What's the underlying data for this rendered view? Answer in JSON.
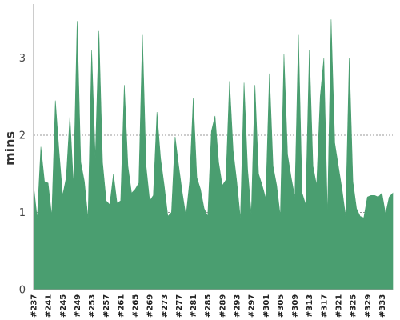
{
  "chart_data": {
    "type": "area",
    "ylabel": "mins",
    "xlabel": "",
    "ylim": [
      0,
      3.7
    ],
    "yticks": [
      0,
      1,
      2,
      3
    ],
    "grid": true,
    "fill_color": "#4a9e70",
    "grid_color": "#777777",
    "x_start": 237,
    "x_end": 335,
    "x_tick_labels": [
      "#237",
      "#241",
      "#245",
      "#249",
      "#253",
      "#257",
      "#261",
      "#265",
      "#269",
      "#273",
      "#277",
      "#281",
      "#285",
      "#289",
      "#293",
      "#297",
      "#301",
      "#305",
      "#309",
      "#313",
      "#317",
      "#321",
      "#325",
      "#329",
      "#333"
    ],
    "x_tick_values": [
      237,
      241,
      245,
      249,
      253,
      257,
      261,
      265,
      269,
      273,
      277,
      281,
      285,
      289,
      293,
      297,
      301,
      305,
      309,
      313,
      317,
      321,
      325,
      329,
      333
    ],
    "points": [
      [
        237,
        1.35
      ],
      [
        238,
        0.92
      ],
      [
        239,
        1.85
      ],
      [
        240,
        1.4
      ],
      [
        241,
        1.38
      ],
      [
        242,
        0.95
      ],
      [
        243,
        2.45
      ],
      [
        244,
        1.8
      ],
      [
        245,
        1.22
      ],
      [
        246,
        1.45
      ],
      [
        247,
        2.25
      ],
      [
        248,
        1.35
      ],
      [
        249,
        3.48
      ],
      [
        250,
        1.65
      ],
      [
        251,
        1.4
      ],
      [
        252,
        0.92
      ],
      [
        253,
        3.1
      ],
      [
        254,
        1.7
      ],
      [
        255,
        3.35
      ],
      [
        256,
        1.65
      ],
      [
        257,
        1.15
      ],
      [
        258,
        1.1
      ],
      [
        259,
        1.5
      ],
      [
        260,
        1.12
      ],
      [
        261,
        1.15
      ],
      [
        262,
        2.65
      ],
      [
        263,
        1.6
      ],
      [
        264,
        1.25
      ],
      [
        265,
        1.3
      ],
      [
        266,
        1.38
      ],
      [
        267,
        3.3
      ],
      [
        268,
        1.6
      ],
      [
        269,
        1.15
      ],
      [
        270,
        1.22
      ],
      [
        271,
        2.3
      ],
      [
        272,
        1.7
      ],
      [
        273,
        1.35
      ],
      [
        274,
        0.95
      ],
      [
        275,
        1.0
      ],
      [
        276,
        1.98
      ],
      [
        277,
        1.6
      ],
      [
        278,
        1.25
      ],
      [
        279,
        0.95
      ],
      [
        280,
        1.4
      ],
      [
        281,
        2.48
      ],
      [
        282,
        1.45
      ],
      [
        283,
        1.3
      ],
      [
        284,
        1.05
      ],
      [
        285,
        0.95
      ],
      [
        286,
        2.05
      ],
      [
        287,
        2.25
      ],
      [
        288,
        1.65
      ],
      [
        289,
        1.35
      ],
      [
        290,
        1.42
      ],
      [
        291,
        2.7
      ],
      [
        292,
        1.8
      ],
      [
        293,
        1.4
      ],
      [
        294,
        0.92
      ],
      [
        295,
        2.68
      ],
      [
        296,
        1.55
      ],
      [
        297,
        0.98
      ],
      [
        298,
        2.65
      ],
      [
        299,
        1.5
      ],
      [
        300,
        1.35
      ],
      [
        301,
        1.18
      ],
      [
        302,
        2.8
      ],
      [
        303,
        1.6
      ],
      [
        304,
        1.35
      ],
      [
        305,
        0.95
      ],
      [
        306,
        3.05
      ],
      [
        307,
        1.75
      ],
      [
        308,
        1.45
      ],
      [
        309,
        1.2
      ],
      [
        310,
        3.3
      ],
      [
        311,
        1.25
      ],
      [
        312,
        1.1
      ],
      [
        313,
        3.1
      ],
      [
        314,
        1.6
      ],
      [
        315,
        1.35
      ],
      [
        316,
        2.5
      ],
      [
        317,
        3.0
      ],
      [
        318,
        0.95
      ],
      [
        319,
        3.5
      ],
      [
        320,
        1.9
      ],
      [
        321,
        1.6
      ],
      [
        322,
        1.3
      ],
      [
        323,
        0.95
      ],
      [
        324,
        3.0
      ],
      [
        325,
        1.4
      ],
      [
        326,
        1.05
      ],
      [
        327,
        0.95
      ],
      [
        328,
        0.93
      ],
      [
        329,
        1.2
      ],
      [
        330,
        1.22
      ],
      [
        331,
        1.22
      ],
      [
        332,
        1.2
      ],
      [
        333,
        1.25
      ],
      [
        334,
        0.98
      ],
      [
        335,
        1.2
      ],
      [
        336,
        1.25
      ]
    ]
  }
}
